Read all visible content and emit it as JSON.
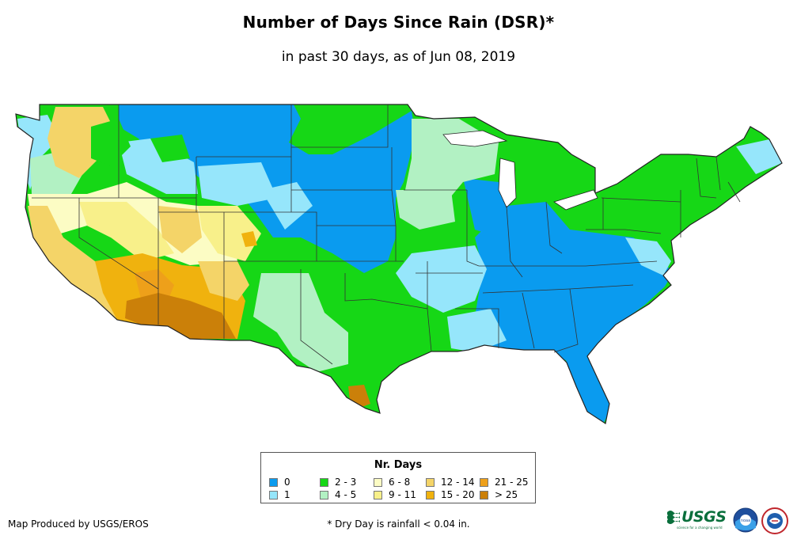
{
  "title": "Number of Days Since Rain (DSR)*",
  "subtitle": "in past 30 days, as of Jun 08, 2019",
  "legend": {
    "title": "Nr. Days",
    "items": [
      {
        "label": "0",
        "color": "#0a9bef"
      },
      {
        "label": "1",
        "color": "#96e6fb"
      },
      {
        "label": "2 - 3",
        "color": "#16d716"
      },
      {
        "label": "4 - 5",
        "color": "#b2f1c3"
      },
      {
        "label": "6 - 8",
        "color": "#fcfcc4"
      },
      {
        "label": "9 - 11",
        "color": "#f8f08a"
      },
      {
        "label": "12 - 14",
        "color": "#f4d468"
      },
      {
        "label": "15 - 20",
        "color": "#f0b20e"
      },
      {
        "label": "21 - 25",
        "color": "#eea01a"
      },
      {
        "label": "> 25",
        "color": "#cb8009"
      }
    ]
  },
  "credit": "Map Produced by USGS/EROS",
  "footnote": "* Dry Day is rainfall < 0.04 in.",
  "logos": {
    "usgs": "USGS",
    "usgs_tagline": "science for a changing world",
    "noaa": "noaa"
  }
}
